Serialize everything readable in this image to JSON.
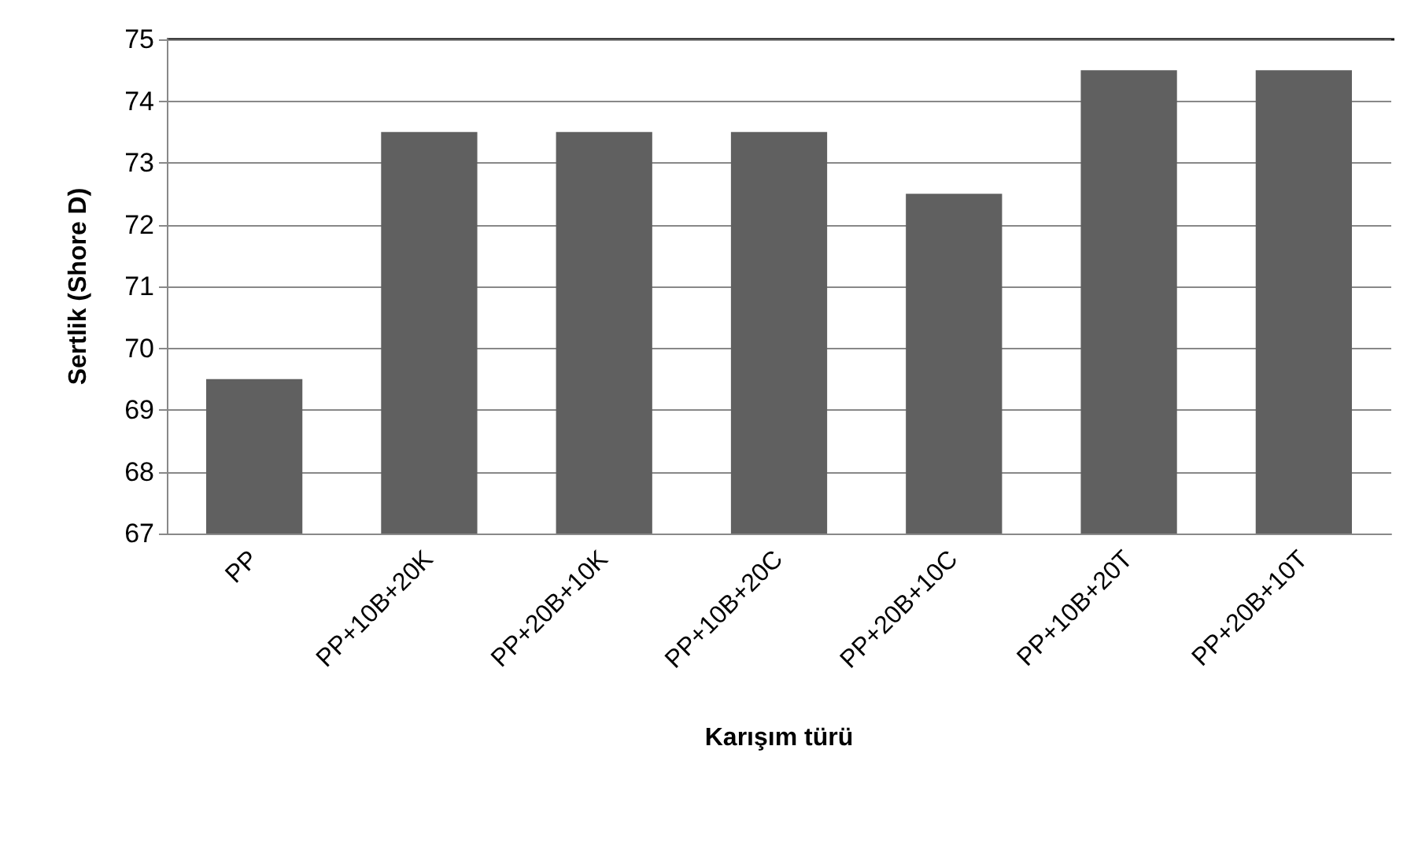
{
  "chart_data": {
    "type": "bar",
    "xlabel": "Karışım türü",
    "ylabel": "Sertlik (Shore D)",
    "categories": [
      "PP",
      "PP+10B+20K",
      "PP+20B+10K",
      "PP+10B+20C",
      "PP+20B+10C",
      "PP+10B+20T",
      "PP+20B+10T"
    ],
    "values": [
      69.5,
      73.5,
      73.5,
      73.5,
      72.5,
      74.5,
      74.5
    ],
    "color": "#606060",
    "ylim": [
      67,
      75
    ],
    "yticks": [
      67,
      68,
      69,
      70,
      71,
      72,
      73,
      74,
      75
    ],
    "grid": "y"
  }
}
